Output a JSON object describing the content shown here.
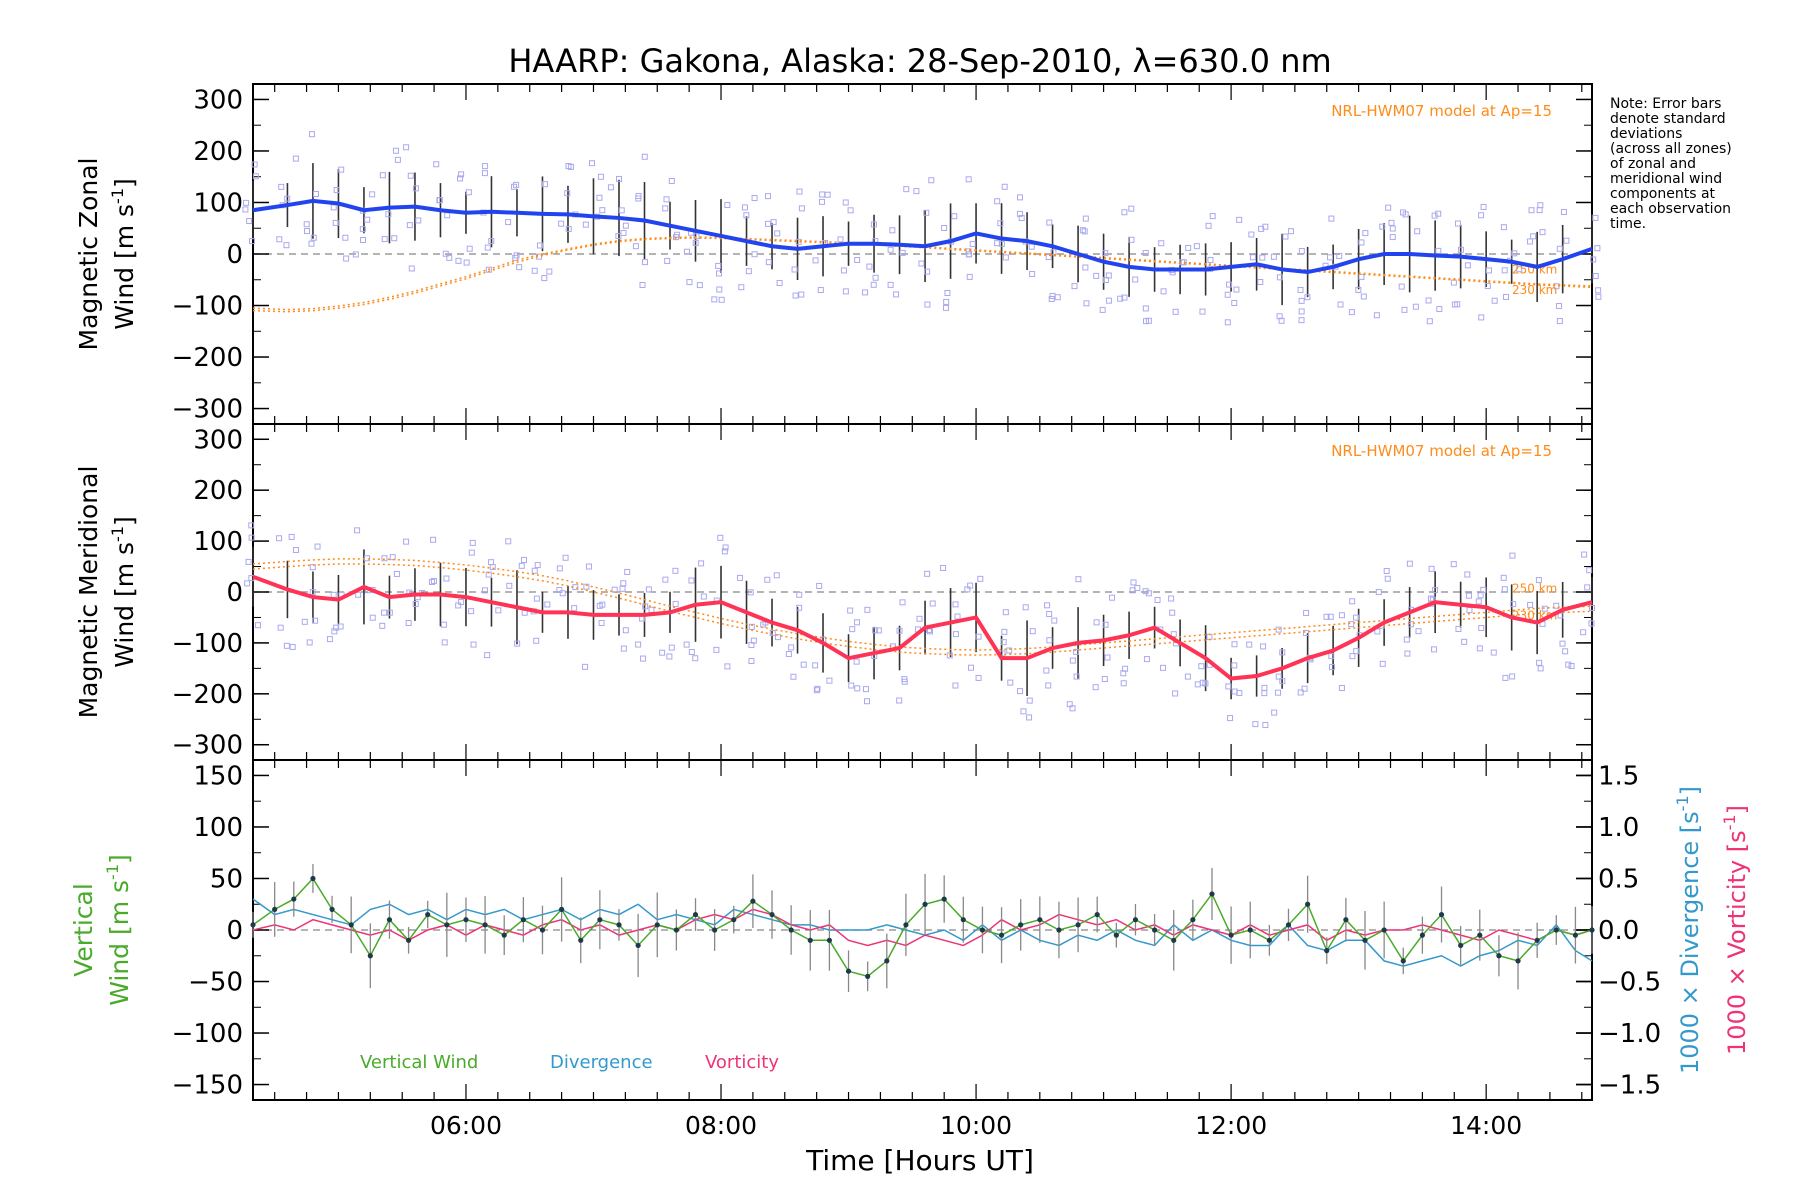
{
  "title": "HAARP: Gakona,  Alaska: 28-Sep-2010, λ=630.0 nm",
  "note_lines": [
    "Note: Error bars",
    "denote standard",
    "deviations",
    "(across all zones)",
    "of zonal and",
    "meridional wind",
    "components at",
    "each observation",
    "time."
  ],
  "colors": {
    "zonal": "#2244ee",
    "meridional": "#ff3355",
    "model": "#ff8c1a",
    "vertical": "#4aaa2a",
    "divergence": "#3399cc",
    "vorticity": "#ee3377",
    "zone_points": "#a9a9ee",
    "error_bar": "#333333"
  },
  "x_axis": {
    "label": "Time [Hours UT]",
    "ticks": [
      "06:00",
      "08:00",
      "10:00",
      "12:00",
      "14:00"
    ],
    "range_hours": [
      4.33,
      14.83
    ]
  },
  "chart_data": [
    {
      "type": "line",
      "panel": "zonal",
      "ylabel_line1": "Magnetic Zonal",
      "ylabel_line2": "Wind [m s",
      "ylabel_sup": "-1",
      "ylabel_close": "]",
      "ylim": [
        -330,
        330
      ],
      "yticks": [
        "300",
        "200",
        "100",
        "0",
        "−100",
        "−200",
        "−300"
      ],
      "model_label": "NRL-HWM07 model at Ap=15",
      "model_alt_labels": [
        "250 km",
        "230 km"
      ],
      "x": [
        4.33,
        4.6,
        4.8,
        5.0,
        5.2,
        5.4,
        5.6,
        5.8,
        6.0,
        6.2,
        6.4,
        6.6,
        6.8,
        7.0,
        7.2,
        7.4,
        7.6,
        7.8,
        8.0,
        8.2,
        8.4,
        8.6,
        8.8,
        9.0,
        9.2,
        9.4,
        9.6,
        9.8,
        10.0,
        10.2,
        10.4,
        10.6,
        10.8,
        11.0,
        11.2,
        11.4,
        11.6,
        11.8,
        12.0,
        12.2,
        12.4,
        12.6,
        12.8,
        13.0,
        13.2,
        13.4,
        13.6,
        13.8,
        14.0,
        14.2,
        14.4,
        14.6,
        14.83
      ],
      "series": [
        {
          "name": "Zonal",
          "values": [
            85,
            95,
            103,
            98,
            85,
            90,
            92,
            85,
            80,
            82,
            80,
            78,
            77,
            73,
            70,
            65,
            55,
            45,
            35,
            25,
            15,
            10,
            15,
            20,
            20,
            18,
            15,
            25,
            40,
            30,
            25,
            15,
            0,
            -15,
            -25,
            -30,
            -30,
            -30,
            -25,
            -20,
            -30,
            -35,
            -25,
            -10,
            0,
            0,
            -3,
            -5,
            -10,
            -15,
            -25,
            -10,
            10
          ]
        },
        {
          "name": "250 km",
          "values": [
            -110,
            -112,
            -110,
            -105,
            -98,
            -88,
            -76,
            -62,
            -48,
            -32,
            -16,
            -3,
            8,
            17,
            24,
            28,
            30,
            31,
            30,
            28,
            26,
            24,
            22,
            20,
            18,
            15,
            12,
            9,
            6,
            3,
            0,
            -3,
            -6,
            -9,
            -12,
            -15,
            -18,
            -21,
            -24,
            -27,
            -30,
            -33,
            -36,
            -39,
            -42,
            -45,
            -48,
            -51,
            -54,
            -57,
            -60,
            -62,
            -65
          ]
        },
        {
          "name": "230 km",
          "values": [
            -105,
            -108,
            -106,
            -101,
            -94,
            -84,
            -72,
            -58,
            -44,
            -28,
            -12,
            0,
            10,
            19,
            26,
            30,
            32,
            33,
            32,
            30,
            28,
            26,
            24,
            22,
            20,
            17,
            14,
            11,
            8,
            5,
            2,
            -1,
            -4,
            -7,
            -10,
            -13,
            -16,
            -19,
            -22,
            -25,
            -28,
            -31,
            -34,
            -37,
            -40,
            -43,
            -46,
            -49,
            -52,
            -55,
            -58,
            -60,
            -62
          ]
        }
      ]
    },
    {
      "type": "line",
      "panel": "meridional",
      "ylabel_line1": "Magnetic Meridional",
      "ylabel_line2": "Wind [m s",
      "ylabel_sup": "-1",
      "ylabel_close": "]",
      "ylim": [
        -330,
        330
      ],
      "yticks": [
        "300",
        "200",
        "100",
        "0",
        "−100",
        "−200",
        "−300"
      ],
      "model_label": "NRL-HWM07 model at Ap=15",
      "model_alt_labels": [
        "250 km",
        "230 km"
      ],
      "x": [
        4.33,
        4.6,
        4.8,
        5.0,
        5.2,
        5.4,
        5.6,
        5.8,
        6.0,
        6.2,
        6.4,
        6.6,
        6.8,
        7.0,
        7.2,
        7.4,
        7.6,
        7.8,
        8.0,
        8.2,
        8.4,
        8.6,
        8.8,
        9.0,
        9.2,
        9.4,
        9.6,
        9.8,
        10.0,
        10.2,
        10.4,
        10.6,
        10.8,
        11.0,
        11.2,
        11.4,
        11.6,
        11.8,
        12.0,
        12.2,
        12.4,
        12.6,
        12.8,
        13.0,
        13.2,
        13.4,
        13.6,
        13.8,
        14.0,
        14.2,
        14.4,
        14.6,
        14.83
      ],
      "series": [
        {
          "name": "Meridional",
          "values": [
            30,
            5,
            -10,
            -15,
            10,
            -10,
            -5,
            -5,
            -10,
            -20,
            -30,
            -40,
            -40,
            -45,
            -45,
            -45,
            -40,
            -25,
            -20,
            -40,
            -60,
            -75,
            -100,
            -130,
            -120,
            -110,
            -70,
            -60,
            -50,
            -130,
            -130,
            -110,
            -100,
            -95,
            -85,
            -70,
            -100,
            -130,
            -170,
            -165,
            -150,
            -130,
            -115,
            -90,
            -60,
            -40,
            -20,
            -25,
            -30,
            -50,
            -60,
            -35,
            -20
          ]
        },
        {
          "name": "250 km",
          "values": [
            55,
            60,
            63,
            65,
            65,
            64,
            62,
            58,
            53,
            47,
            40,
            32,
            22,
            10,
            -2,
            -15,
            -28,
            -40,
            -52,
            -63,
            -73,
            -82,
            -90,
            -97,
            -103,
            -108,
            -111,
            -113,
            -114,
            -113,
            -111,
            -108,
            -104,
            -100,
            -96,
            -92,
            -88,
            -84,
            -80,
            -76,
            -72,
            -68,
            -64,
            -60,
            -56,
            -52,
            -48,
            -44,
            -40,
            -36,
            -32,
            -30,
            -28
          ]
        },
        {
          "name": "230 km",
          "values": [
            45,
            50,
            53,
            55,
            55,
            54,
            52,
            48,
            43,
            37,
            30,
            22,
            12,
            0,
            -12,
            -25,
            -38,
            -50,
            -62,
            -73,
            -83,
            -92,
            -100,
            -107,
            -113,
            -118,
            -121,
            -123,
            -124,
            -123,
            -121,
            -118,
            -114,
            -110,
            -106,
            -102,
            -98,
            -94,
            -90,
            -86,
            -82,
            -78,
            -74,
            -70,
            -66,
            -62,
            -58,
            -54,
            -50,
            -46,
            -42,
            -40,
            -38
          ]
        }
      ]
    },
    {
      "type": "line",
      "panel": "vertical",
      "ylabel_line1": "Vertical",
      "ylabel_line2": "Wind [m s",
      "ylabel_sup": "-1",
      "ylabel_close": "]",
      "ylim": [
        -165,
        165
      ],
      "yticks": [
        "150",
        "100",
        "50",
        "0",
        "−50",
        "−100",
        "−150"
      ],
      "y2lim": [
        -1.65,
        1.65
      ],
      "y2ticks": [
        "1.5",
        "1.0",
        "0.5",
        "0.0",
        "−0.5",
        "−1.0",
        "−1.5"
      ],
      "y2label_div": "1000 × Divergence [s",
      "y2label_vort": "1000 × Vorticity [s",
      "legend": [
        "Vertical Wind",
        "Divergence",
        "Vorticity"
      ],
      "x": [
        4.33,
        4.5,
        4.65,
        4.8,
        4.95,
        5.1,
        5.25,
        5.4,
        5.55,
        5.7,
        5.85,
        6.0,
        6.15,
        6.3,
        6.45,
        6.6,
        6.75,
        6.9,
        7.05,
        7.2,
        7.35,
        7.5,
        7.65,
        7.8,
        7.95,
        8.1,
        8.25,
        8.4,
        8.55,
        8.7,
        8.85,
        9.0,
        9.15,
        9.3,
        9.45,
        9.6,
        9.75,
        9.9,
        10.05,
        10.2,
        10.35,
        10.5,
        10.65,
        10.8,
        10.95,
        11.1,
        11.25,
        11.4,
        11.55,
        11.7,
        11.85,
        12.0,
        12.15,
        12.3,
        12.45,
        12.6,
        12.75,
        12.9,
        13.05,
        13.2,
        13.35,
        13.5,
        13.65,
        13.8,
        13.95,
        14.1,
        14.25,
        14.4,
        14.55,
        14.7,
        14.83
      ],
      "series": [
        {
          "name": "Vertical Wind",
          "values": [
            5,
            20,
            30,
            50,
            20,
            5,
            -25,
            10,
            -10,
            15,
            5,
            10,
            5,
            -5,
            10,
            0,
            20,
            -10,
            10,
            5,
            -15,
            5,
            0,
            15,
            0,
            10,
            28,
            15,
            0,
            -10,
            -10,
            -40,
            -45,
            -30,
            5,
            25,
            30,
            10,
            0,
            -5,
            5,
            10,
            0,
            5,
            15,
            -5,
            10,
            0,
            -10,
            10,
            35,
            -5,
            0,
            -10,
            5,
            25,
            -20,
            10,
            -10,
            0,
            -30,
            -5,
            15,
            -15,
            -5,
            -25,
            -30,
            -10,
            0,
            -5,
            0
          ]
        },
        {
          "name": "Divergence",
          "values": [
            0.3,
            0.15,
            0.2,
            0.15,
            0.1,
            0.05,
            0.2,
            0.25,
            0.15,
            0.2,
            0.1,
            0.2,
            0.15,
            0.2,
            0.1,
            0.15,
            0.2,
            0.1,
            0.2,
            0.15,
            0.25,
            0.1,
            0.15,
            0.1,
            0.05,
            0.2,
            0.15,
            0.1,
            0.05,
            0.05,
            0.0,
            0.0,
            0.0,
            0.05,
            0.0,
            -0.05,
            0.0,
            -0.1,
            0.05,
            -0.1,
            0.0,
            -0.1,
            -0.15,
            -0.05,
            -0.1,
            0.0,
            -0.1,
            -0.15,
            0.05,
            -0.1,
            0.0,
            -0.1,
            -0.15,
            -0.15,
            0.05,
            -0.15,
            -0.2,
            -0.1,
            -0.1,
            -0.3,
            -0.35,
            -0.3,
            -0.25,
            -0.35,
            -0.25,
            -0.2,
            -0.1,
            -0.15,
            0.05,
            -0.2,
            -0.3
          ]
        },
        {
          "name": "Vorticity",
          "values": [
            0.0,
            0.05,
            0.0,
            0.1,
            0.05,
            0.0,
            -0.05,
            0.0,
            -0.1,
            0.0,
            0.05,
            -0.05,
            0.05,
            0.0,
            -0.05,
            0.05,
            0.1,
            0.0,
            0.05,
            -0.05,
            0.0,
            0.05,
            0.0,
            0.1,
            0.15,
            0.1,
            0.2,
            0.15,
            0.05,
            0.0,
            0.05,
            -0.1,
            -0.15,
            -0.1,
            -0.15,
            -0.05,
            -0.1,
            -0.15,
            -0.05,
            0.1,
            0.0,
            0.05,
            0.15,
            0.1,
            0.05,
            0.1,
            0.0,
            0.05,
            -0.05,
            0.05,
            0.0,
            -0.05,
            0.05,
            -0.05,
            0.0,
            0.05,
            -0.1,
            0.0,
            -0.05,
            0.0,
            0.0,
            0.05,
            0.0,
            -0.05,
            -0.1,
            0.0,
            -0.05,
            -0.1,
            0.0,
            -0.05,
            0.0
          ]
        }
      ]
    }
  ]
}
